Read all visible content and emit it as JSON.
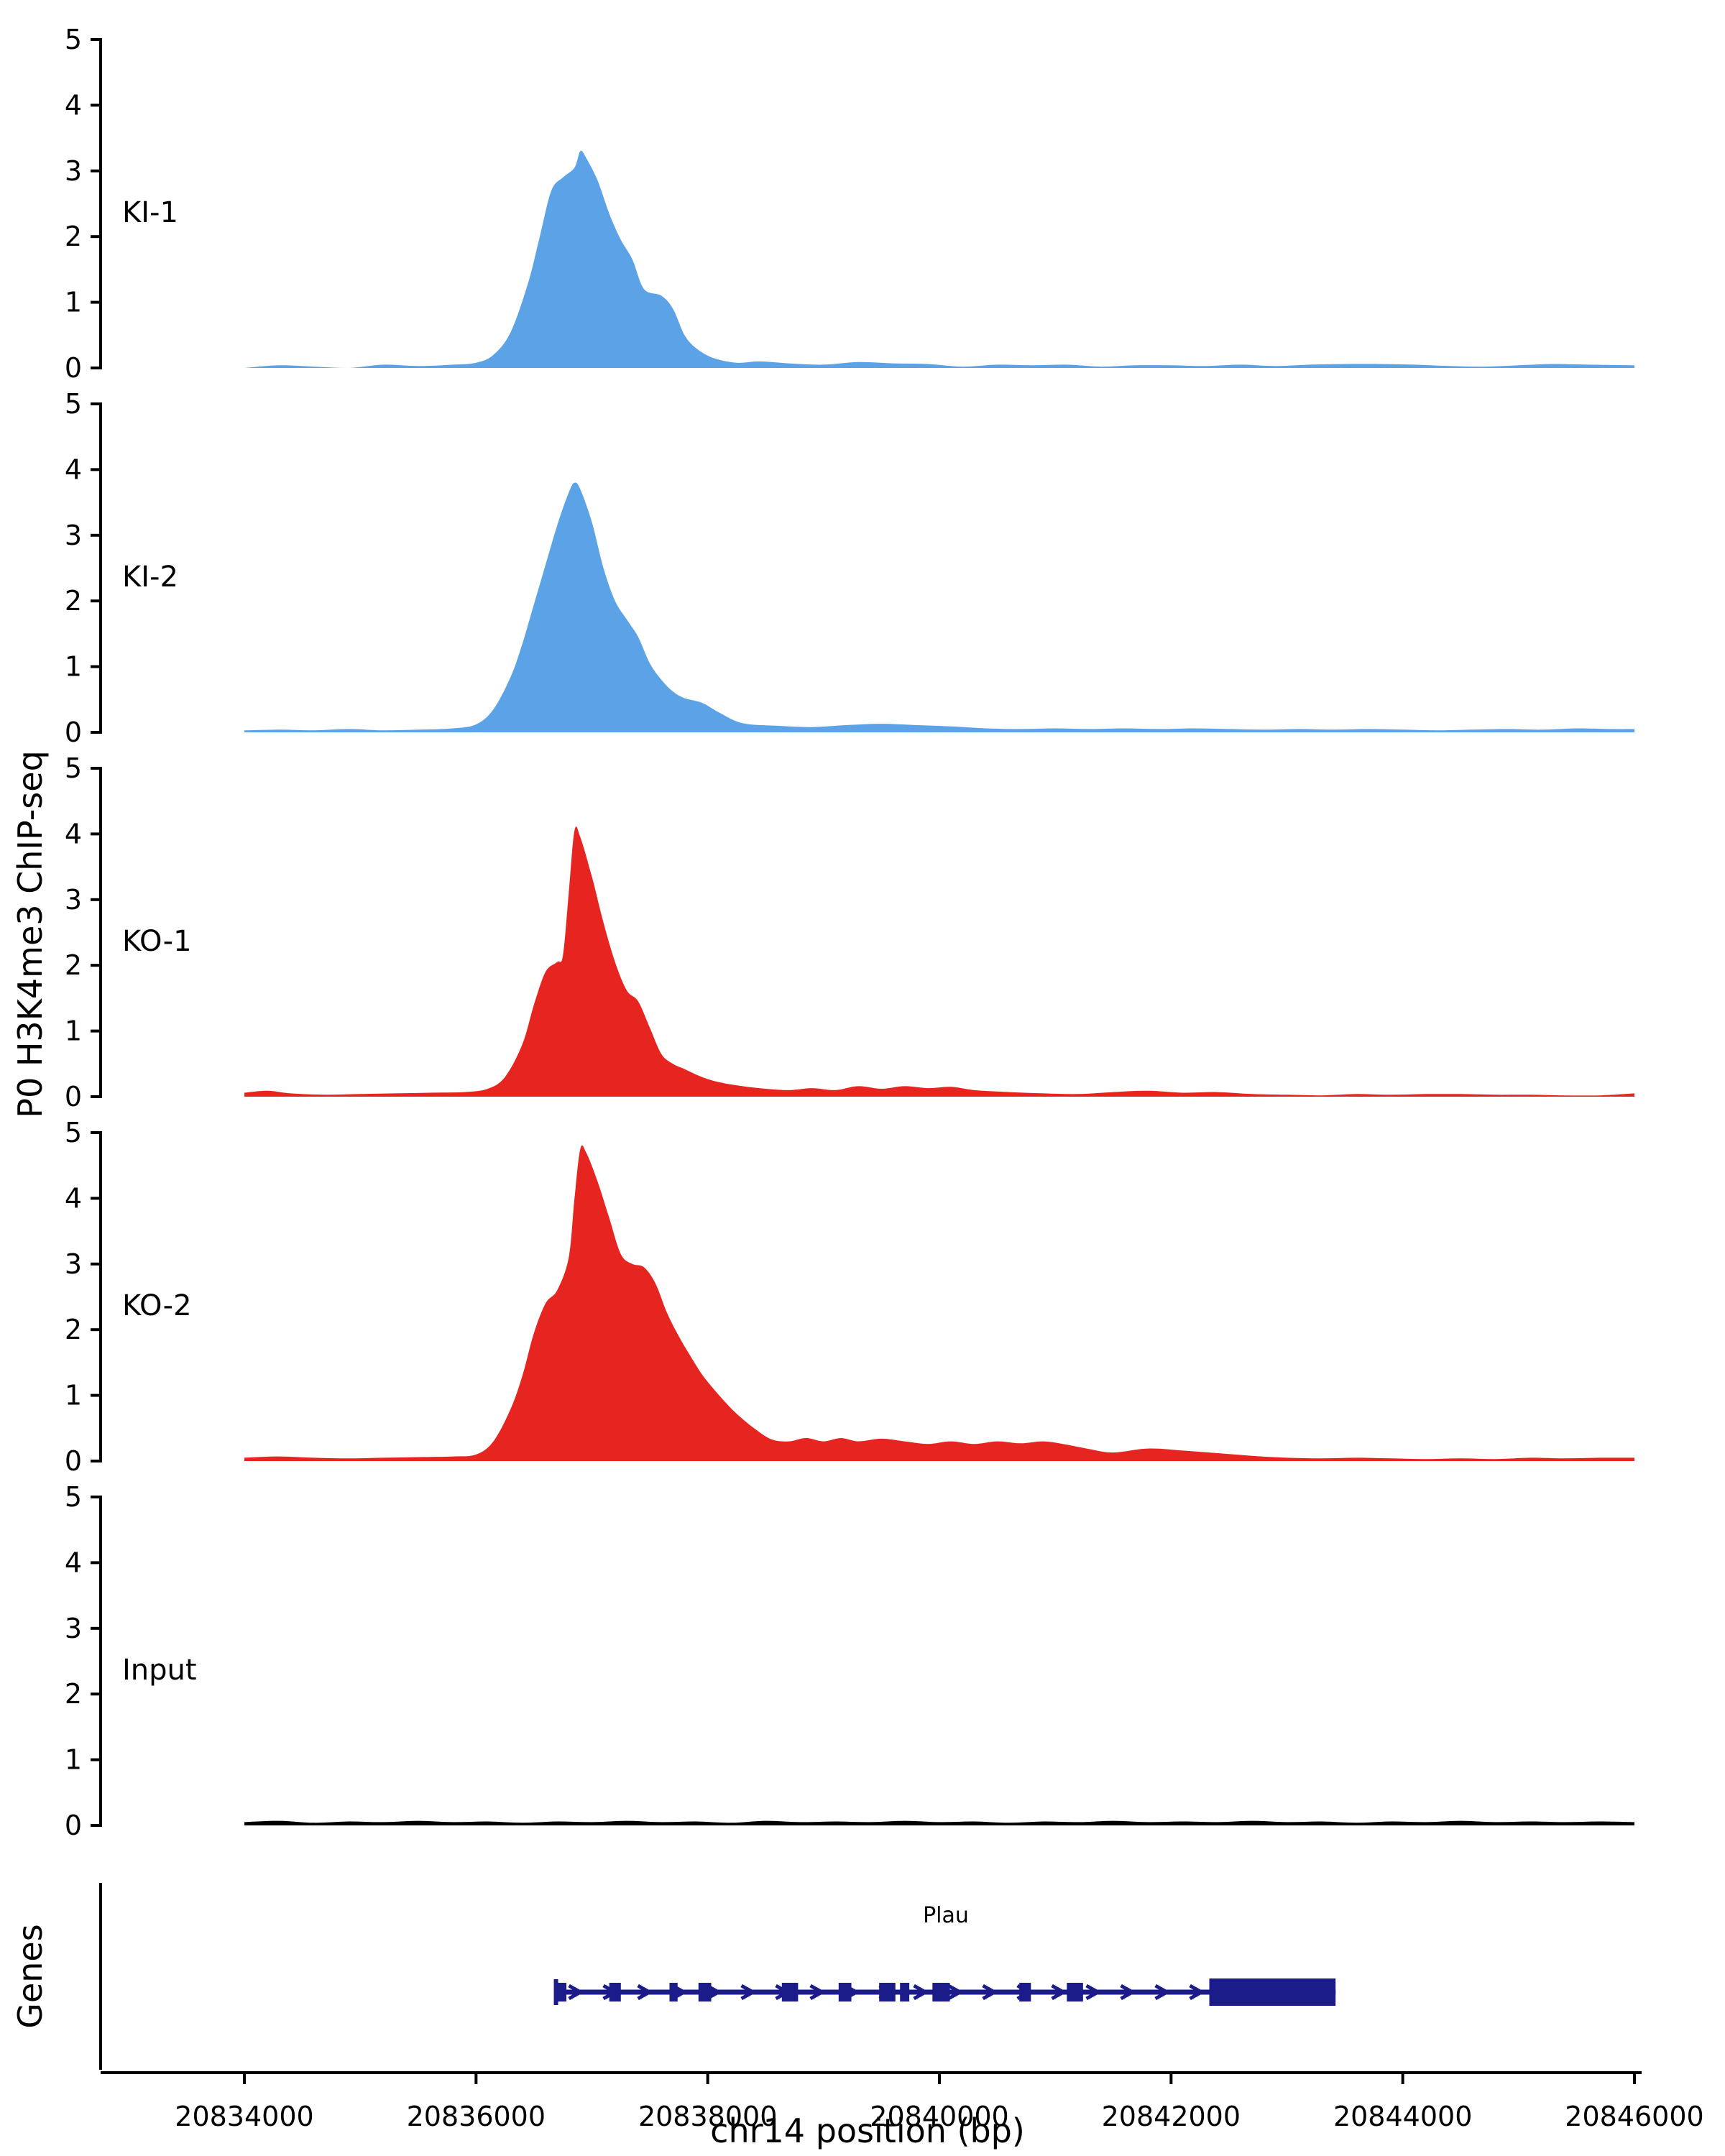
{
  "figure": {
    "y_axis_label": "P0 H3K4me3 ChIP-seq",
    "x_axis_label": "chr14 position (bp)",
    "genes_panel_label": "Genes",
    "background": "#ffffff"
  },
  "chart_data": {
    "type": "area",
    "title": "",
    "x_axis": {
      "label": "chr14 position (bp)",
      "min": 20834000,
      "max": 20846000,
      "tick_interval": 2000,
      "ticks": [
        20834000,
        20836000,
        20838000,
        20840000,
        20842000,
        20844000,
        20846000
      ]
    },
    "y_axis": {
      "min": 0,
      "max": 5,
      "ticks": [
        0,
        1,
        2,
        3,
        4,
        5
      ]
    },
    "tracks": [
      {
        "name": "KI-1",
        "color": "#5BA3E6",
        "points": [
          [
            20834000,
            0
          ],
          [
            20834300,
            0.04
          ],
          [
            20834600,
            0.02
          ],
          [
            20834900,
            0
          ],
          [
            20835200,
            0.05
          ],
          [
            20835500,
            0.03
          ],
          [
            20835800,
            0.05
          ],
          [
            20836000,
            0.08
          ],
          [
            20836150,
            0.2
          ],
          [
            20836300,
            0.55
          ],
          [
            20836450,
            1.3
          ],
          [
            20836550,
            2.0
          ],
          [
            20836650,
            2.7
          ],
          [
            20836750,
            2.9
          ],
          [
            20836850,
            3.05
          ],
          [
            20836900,
            3.3
          ],
          [
            20836950,
            3.2
          ],
          [
            20837050,
            2.85
          ],
          [
            20837150,
            2.35
          ],
          [
            20837250,
            1.95
          ],
          [
            20837350,
            1.65
          ],
          [
            20837450,
            1.2
          ],
          [
            20837600,
            1.1
          ],
          [
            20837700,
            0.9
          ],
          [
            20837800,
            0.5
          ],
          [
            20837900,
            0.3
          ],
          [
            20838050,
            0.15
          ],
          [
            20838250,
            0.08
          ],
          [
            20838450,
            0.1
          ],
          [
            20838700,
            0.07
          ],
          [
            20839000,
            0.05
          ],
          [
            20839300,
            0.09
          ],
          [
            20839600,
            0.07
          ],
          [
            20839900,
            0.06
          ],
          [
            20840200,
            0.02
          ],
          [
            20840500,
            0.05
          ],
          [
            20840800,
            0.04
          ],
          [
            20841100,
            0.05
          ],
          [
            20841400,
            0.02
          ],
          [
            20841700,
            0.04
          ],
          [
            20842000,
            0.04
          ],
          [
            20842300,
            0.03
          ],
          [
            20842600,
            0.05
          ],
          [
            20842900,
            0.03
          ],
          [
            20843200,
            0.05
          ],
          [
            20843500,
            0.06
          ],
          [
            20843800,
            0.06
          ],
          [
            20844100,
            0.05
          ],
          [
            20844400,
            0.03
          ],
          [
            20844700,
            0.02
          ],
          [
            20845000,
            0.04
          ],
          [
            20845300,
            0.06
          ],
          [
            20845600,
            0.05
          ],
          [
            20846000,
            0.04
          ]
        ]
      },
      {
        "name": "KI-2",
        "color": "#5BA3E6",
        "points": [
          [
            20834000,
            0.03
          ],
          [
            20834300,
            0.04
          ],
          [
            20834600,
            0.03
          ],
          [
            20834900,
            0.05
          ],
          [
            20835200,
            0.03
          ],
          [
            20835500,
            0.04
          ],
          [
            20835800,
            0.06
          ],
          [
            20836000,
            0.12
          ],
          [
            20836150,
            0.35
          ],
          [
            20836300,
            0.85
          ],
          [
            20836400,
            1.35
          ],
          [
            20836500,
            1.95
          ],
          [
            20836600,
            2.55
          ],
          [
            20836700,
            3.15
          ],
          [
            20836800,
            3.65
          ],
          [
            20836850,
            3.8
          ],
          [
            20836900,
            3.7
          ],
          [
            20837000,
            3.2
          ],
          [
            20837100,
            2.5
          ],
          [
            20837200,
            2.0
          ],
          [
            20837300,
            1.72
          ],
          [
            20837400,
            1.45
          ],
          [
            20837500,
            1.05
          ],
          [
            20837600,
            0.8
          ],
          [
            20837700,
            0.62
          ],
          [
            20837800,
            0.52
          ],
          [
            20837950,
            0.45
          ],
          [
            20838100,
            0.3
          ],
          [
            20838300,
            0.14
          ],
          [
            20838600,
            0.1
          ],
          [
            20838900,
            0.08
          ],
          [
            20839200,
            0.11
          ],
          [
            20839500,
            0.13
          ],
          [
            20839800,
            0.11
          ],
          [
            20840100,
            0.09
          ],
          [
            20840400,
            0.06
          ],
          [
            20840700,
            0.05
          ],
          [
            20841000,
            0.06
          ],
          [
            20841300,
            0.05
          ],
          [
            20841600,
            0.06
          ],
          [
            20841900,
            0.05
          ],
          [
            20842200,
            0.06
          ],
          [
            20842500,
            0.05
          ],
          [
            20842800,
            0.04
          ],
          [
            20843100,
            0.05
          ],
          [
            20843400,
            0.04
          ],
          [
            20843700,
            0.05
          ],
          [
            20844000,
            0.04
          ],
          [
            20844300,
            0.03
          ],
          [
            20844600,
            0.04
          ],
          [
            20844900,
            0.05
          ],
          [
            20845200,
            0.04
          ],
          [
            20845500,
            0.06
          ],
          [
            20845800,
            0.05
          ],
          [
            20846000,
            0.05
          ]
        ]
      },
      {
        "name": "KO-1",
        "color": "#E62520",
        "points": [
          [
            20834000,
            0.06
          ],
          [
            20834200,
            0.09
          ],
          [
            20834400,
            0.05
          ],
          [
            20834700,
            0.03
          ],
          [
            20835000,
            0.04
          ],
          [
            20835300,
            0.05
          ],
          [
            20835600,
            0.06
          ],
          [
            20835900,
            0.07
          ],
          [
            20836100,
            0.12
          ],
          [
            20836250,
            0.3
          ],
          [
            20836400,
            0.8
          ],
          [
            20836500,
            1.4
          ],
          [
            20836600,
            1.9
          ],
          [
            20836700,
            2.05
          ],
          [
            20836750,
            2.15
          ],
          [
            20836800,
            3.1
          ],
          [
            20836850,
            4.05
          ],
          [
            20836900,
            3.95
          ],
          [
            20837000,
            3.35
          ],
          [
            20837100,
            2.65
          ],
          [
            20837200,
            2.05
          ],
          [
            20837300,
            1.62
          ],
          [
            20837400,
            1.45
          ],
          [
            20837500,
            1.05
          ],
          [
            20837600,
            0.65
          ],
          [
            20837700,
            0.5
          ],
          [
            20837800,
            0.42
          ],
          [
            20837950,
            0.3
          ],
          [
            20838100,
            0.22
          ],
          [
            20838300,
            0.16
          ],
          [
            20838500,
            0.12
          ],
          [
            20838700,
            0.1
          ],
          [
            20838900,
            0.13
          ],
          [
            20839100,
            0.1
          ],
          [
            20839300,
            0.16
          ],
          [
            20839500,
            0.12
          ],
          [
            20839700,
            0.16
          ],
          [
            20839900,
            0.13
          ],
          [
            20840100,
            0.15
          ],
          [
            20840300,
            0.1
          ],
          [
            20840600,
            0.07
          ],
          [
            20840900,
            0.05
          ],
          [
            20841200,
            0.04
          ],
          [
            20841500,
            0.07
          ],
          [
            20841800,
            0.09
          ],
          [
            20842100,
            0.06
          ],
          [
            20842400,
            0.07
          ],
          [
            20842700,
            0.04
          ],
          [
            20843000,
            0.03
          ],
          [
            20843300,
            0.02
          ],
          [
            20843600,
            0.04
          ],
          [
            20843900,
            0.03
          ],
          [
            20844200,
            0.04
          ],
          [
            20844500,
            0.04
          ],
          [
            20844800,
            0.03
          ],
          [
            20845100,
            0.03
          ],
          [
            20845400,
            0.02
          ],
          [
            20845700,
            0.02
          ],
          [
            20846000,
            0.05
          ]
        ]
      },
      {
        "name": "KO-2",
        "color": "#E62520",
        "points": [
          [
            20834000,
            0.05
          ],
          [
            20834300,
            0.07
          ],
          [
            20834600,
            0.05
          ],
          [
            20834900,
            0.04
          ],
          [
            20835200,
            0.05
          ],
          [
            20835500,
            0.06
          ],
          [
            20835800,
            0.07
          ],
          [
            20836000,
            0.1
          ],
          [
            20836150,
            0.3
          ],
          [
            20836300,
            0.8
          ],
          [
            20836400,
            1.3
          ],
          [
            20836500,
            1.95
          ],
          [
            20836600,
            2.4
          ],
          [
            20836700,
            2.6
          ],
          [
            20836800,
            3.1
          ],
          [
            20836850,
            4.0
          ],
          [
            20836900,
            4.75
          ],
          [
            20836950,
            4.7
          ],
          [
            20837050,
            4.25
          ],
          [
            20837150,
            3.7
          ],
          [
            20837250,
            3.15
          ],
          [
            20837350,
            3.0
          ],
          [
            20837450,
            2.95
          ],
          [
            20837550,
            2.7
          ],
          [
            20837650,
            2.25
          ],
          [
            20837750,
            1.9
          ],
          [
            20837850,
            1.6
          ],
          [
            20837950,
            1.32
          ],
          [
            20838050,
            1.1
          ],
          [
            20838150,
            0.9
          ],
          [
            20838250,
            0.72
          ],
          [
            20838400,
            0.5
          ],
          [
            20838550,
            0.33
          ],
          [
            20838700,
            0.3
          ],
          [
            20838850,
            0.35
          ],
          [
            20839000,
            0.3
          ],
          [
            20839150,
            0.35
          ],
          [
            20839300,
            0.3
          ],
          [
            20839500,
            0.34
          ],
          [
            20839700,
            0.3
          ],
          [
            20839900,
            0.26
          ],
          [
            20840100,
            0.3
          ],
          [
            20840300,
            0.26
          ],
          [
            20840500,
            0.3
          ],
          [
            20840700,
            0.27
          ],
          [
            20840900,
            0.3
          ],
          [
            20841100,
            0.25
          ],
          [
            20841300,
            0.18
          ],
          [
            20841500,
            0.13
          ],
          [
            20841800,
            0.19
          ],
          [
            20842100,
            0.16
          ],
          [
            20842400,
            0.12
          ],
          [
            20842700,
            0.08
          ],
          [
            20843000,
            0.05
          ],
          [
            20843300,
            0.04
          ],
          [
            20843600,
            0.05
          ],
          [
            20843900,
            0.04
          ],
          [
            20844200,
            0.03
          ],
          [
            20844500,
            0.04
          ],
          [
            20844800,
            0.03
          ],
          [
            20845100,
            0.05
          ],
          [
            20845400,
            0.04
          ],
          [
            20845700,
            0.05
          ],
          [
            20846000,
            0.05
          ]
        ]
      },
      {
        "name": "Input",
        "color": "#000000",
        "points": [
          [
            20834000,
            0.05
          ],
          [
            20834300,
            0.07
          ],
          [
            20834600,
            0.04
          ],
          [
            20834900,
            0.06
          ],
          [
            20835200,
            0.05
          ],
          [
            20835500,
            0.07
          ],
          [
            20835800,
            0.05
          ],
          [
            20836100,
            0.06
          ],
          [
            20836400,
            0.04
          ],
          [
            20836700,
            0.06
          ],
          [
            20837000,
            0.05
          ],
          [
            20837300,
            0.07
          ],
          [
            20837600,
            0.05
          ],
          [
            20837900,
            0.06
          ],
          [
            20838200,
            0.04
          ],
          [
            20838500,
            0.07
          ],
          [
            20838800,
            0.05
          ],
          [
            20839100,
            0.06
          ],
          [
            20839400,
            0.05
          ],
          [
            20839700,
            0.07
          ],
          [
            20840000,
            0.05
          ],
          [
            20840300,
            0.06
          ],
          [
            20840600,
            0.04
          ],
          [
            20840900,
            0.06
          ],
          [
            20841200,
            0.05
          ],
          [
            20841500,
            0.07
          ],
          [
            20841800,
            0.05
          ],
          [
            20842100,
            0.06
          ],
          [
            20842400,
            0.05
          ],
          [
            20842700,
            0.07
          ],
          [
            20843000,
            0.05
          ],
          [
            20843300,
            0.06
          ],
          [
            20843600,
            0.04
          ],
          [
            20843900,
            0.06
          ],
          [
            20844200,
            0.05
          ],
          [
            20844500,
            0.07
          ],
          [
            20844800,
            0.05
          ],
          [
            20845100,
            0.06
          ],
          [
            20845400,
            0.05
          ],
          [
            20845700,
            0.06
          ],
          [
            20846000,
            0.05
          ]
        ]
      }
    ],
    "gene_track": {
      "label": "Genes",
      "genes": [
        {
          "name": "Plau",
          "strand": "+",
          "start": 20836690,
          "end": 20843420,
          "color": "#1B1B8A",
          "exons": [
            [
              20836690,
              20836780
            ],
            [
              20837150,
              20837250
            ],
            [
              20837670,
              20837740
            ],
            [
              20837920,
              20838030
            ],
            [
              20838640,
              20838780
            ],
            [
              20839130,
              20839240
            ],
            [
              20839480,
              20839620
            ],
            [
              20839660,
              20839740
            ],
            [
              20839940,
              20840090
            ],
            [
              20840690,
              20840790
            ],
            [
              20841100,
              20841240
            ]
          ],
          "terminal_exon": [
            20842330,
            20843420
          ]
        }
      ]
    }
  }
}
